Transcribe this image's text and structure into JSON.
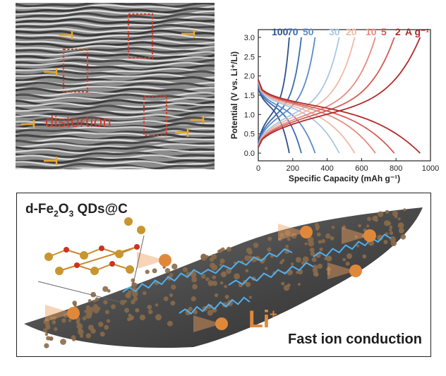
{
  "hrtem": {
    "label": "distortion"
  },
  "chart_data": {
    "type": "line",
    "xlabel": "Specific Capacity (mAh g⁻¹)",
    "ylabel": "Potential (V vs. Li⁺/Li)",
    "xlim": [
      0,
      1000
    ],
    "ylim": [
      -0.2,
      3.2
    ],
    "xticks": [
      0,
      200,
      400,
      600,
      800,
      1000
    ],
    "yticks": [
      0.0,
      0.5,
      1.0,
      1.5,
      2.0,
      2.5,
      3.0
    ],
    "legend_position": "top",
    "unit_label": "A g⁻¹",
    "series": [
      {
        "name": "100",
        "color": "#2f4f8a",
        "cap": 180
      },
      {
        "name": "70",
        "color": "#3a6bb0",
        "cap": 250
      },
      {
        "name": "50",
        "color": "#5a8ccc",
        "cap": 330
      },
      {
        "name": "30",
        "color": "#a9c6e6",
        "cap": 470
      },
      {
        "name": "20",
        "color": "#f0b9a5",
        "cap": 560
      },
      {
        "name": "10",
        "color": "#e58b80",
        "cap": 680
      },
      {
        "name": "5",
        "color": "#d55a55",
        "cap": 790
      },
      {
        "name": "2",
        "color": "#b02a2a",
        "cap": 940
      }
    ]
  },
  "schematic": {
    "title_main": "d-Fe",
    "title_sub1": "2",
    "title_mid": "O",
    "title_sub2": "3",
    "title_end": " QDs@C",
    "li_label": "Li",
    "li_sup": "+",
    "caption": "Fast ion conduction"
  }
}
